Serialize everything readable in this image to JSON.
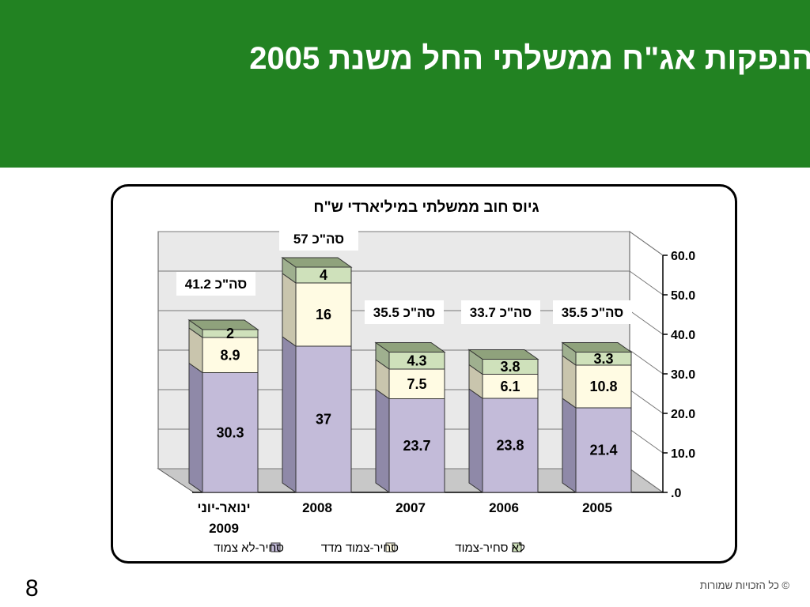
{
  "slide": {
    "title": "הנפקות אג\"ח ממשלתי החל משנת 2005",
    "page_number": "8",
    "copyright": "© כל הזכויות שמורות",
    "header_color": "#228222"
  },
  "chart_data": {
    "type": "bar",
    "stacked": true,
    "three_d": true,
    "title": "גיוס חוב ממשלתי במיליארדי ש\"ח",
    "categories": [
      "ינואר-יוני 2009",
      "2008",
      "2007",
      "2006",
      "2005"
    ],
    "category_lines": [
      [
        "ינואר-יוני",
        "2009"
      ],
      [
        "2008"
      ],
      [
        "2007"
      ],
      [
        "2006"
      ],
      [
        "2005"
      ]
    ],
    "series": [
      {
        "name": "סחיר-לא צמוד",
        "color": "#c3bbd9",
        "values": [
          30.3,
          37,
          23.7,
          23.8,
          21.4
        ]
      },
      {
        "name": "סחיר-צמוד מדד",
        "color": "#fffbe3",
        "values": [
          8.9,
          16,
          7.5,
          6.1,
          10.8
        ]
      },
      {
        "name": "לא סחיר-צמוד",
        "color": "#cfe1bb",
        "values": [
          2,
          4,
          4.3,
          3.8,
          3.3
        ]
      }
    ],
    "value_labels": [
      [
        "30.3",
        "37",
        "23.7",
        "23.8",
        "21.4"
      ],
      [
        "8.9",
        "16",
        "7.5",
        "6.1",
        "10.8"
      ],
      [
        "2",
        "4",
        "4.3",
        "3.8",
        "3.3"
      ]
    ],
    "totals": [
      41.2,
      57,
      35.5,
      33.7,
      35.5
    ],
    "total_labels": [
      "סה\"כ 41.2",
      "סה\"כ 57",
      "סה\"כ 35.5",
      "סה\"כ 33.7",
      "סה\"כ 35.5"
    ],
    "y_axis": {
      "position": "right",
      "min": 0,
      "max": 60,
      "step": 10,
      "tick_labels": [
        ".0",
        "10.0",
        "20.0",
        "30.0",
        "40.0",
        "50.0",
        "60.0"
      ]
    },
    "grid": true,
    "legend": "bottom"
  }
}
